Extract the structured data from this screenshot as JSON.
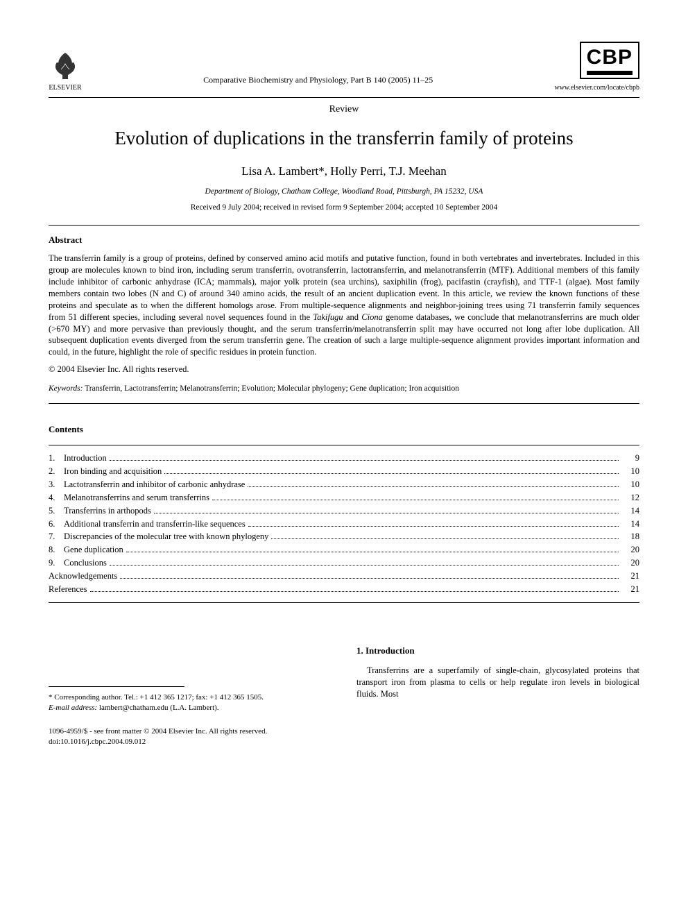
{
  "header": {
    "publisher_name": "ELSEVIER",
    "journal_reference": "Comparative Biochemistry and Physiology, Part B 140 (2005) 11–25",
    "cbp_label": "CBP",
    "journal_url": "www.elsevier.com/locate/cbpb"
  },
  "article": {
    "type": "Review",
    "title": "Evolution of duplications in the transferrin family of proteins",
    "authors": "Lisa A. Lambert*, Holly Perri, T.J. Meehan",
    "affiliation": "Department of Biology, Chatham College, Woodland Road, Pittsburgh, PA 15232, USA",
    "history": "Received 9 July 2004; received in revised form 9 September 2004; accepted 10 September 2004"
  },
  "abstract": {
    "heading": "Abstract",
    "body_pre": "The transferrin family is a group of proteins, defined by conserved amino acid motifs and putative function, found in both vertebrates and invertebrates. Included in this group are molecules known to bind iron, including serum transferrin, ovotransferrin, lactotransferrin, and melanotransferrin (MTF). Additional members of this family include inhibitor of carbonic anhydrase (ICA; mammals), major yolk protein (sea urchins), saxiphilin (frog), pacifastin (crayfish), and TTF-1 (algae). Most family members contain two lobes (N and C) of around 340 amino acids, the result of an ancient duplication event. In this article, we review the known functions of these proteins and speculate as to when the different homologs arose. From multiple-sequence alignments and neighbor-joining trees using 71 transferrin family sequences from 51 different species, including several novel sequences found in the ",
    "ital1": "Takifugu",
    "mid1": " and ",
    "ital2": "Ciona",
    "body_post": " genome databases, we conclude that melanotransferrins are much older (>670 MY) and more pervasive than previously thought, and the serum transferrin/melanotransferrin split may have occurred not long after lobe duplication. All subsequent duplication events diverged from the serum transferrin gene. The creation of such a large multiple-sequence alignment provides important information and could, in the future, highlight the role of specific residues in protein function.",
    "copyright": "© 2004 Elsevier Inc. All rights reserved."
  },
  "keywords": {
    "label": "Keywords:",
    "value": " Transferrin, Lactotransferrin; Melanotransferrin; Evolution; Molecular phylogeny; Gene duplication; Iron acquisition"
  },
  "contents": {
    "heading": "Contents",
    "items": [
      {
        "num": "1.",
        "title": "Introduction",
        "page": "9"
      },
      {
        "num": "2.",
        "title": "Iron binding and acquisition",
        "page": "10"
      },
      {
        "num": "3.",
        "title": "Lactotransferrin and inhibitor of carbonic anhydrase",
        "page": "10"
      },
      {
        "num": "4.",
        "title": "Melanotransferrins and serum transferrins",
        "page": "12"
      },
      {
        "num": "5.",
        "title": "Transferrins in arthopods",
        "page": "14"
      },
      {
        "num": "6.",
        "title": "Additional transferrin and transferrin-like sequences",
        "page": "14"
      },
      {
        "num": "7.",
        "title": "Discrepancies of the molecular tree with known phylogeny",
        "page": "18"
      },
      {
        "num": "8.",
        "title": "Gene duplication",
        "page": "20"
      },
      {
        "num": "9.",
        "title": "Conclusions",
        "page": "20"
      },
      {
        "num": "",
        "title": "Acknowledgements",
        "page": "21"
      },
      {
        "num": "",
        "title": "References",
        "page": "21"
      }
    ]
  },
  "footnote": {
    "corresponding": "* Corresponding author. Tel.: +1 412 365 1217; fax: +1 412 365 1505.",
    "email_label": "E-mail address:",
    "email_value": " lambert@chatham.edu (L.A. Lambert)."
  },
  "intro": {
    "heading": "1. Introduction",
    "body": "Transferrins are a superfamily of single-chain, glycosylated proteins that transport iron from plasma to cells or help regulate iron levels in biological fluids. Most"
  },
  "bottom": {
    "issn_line": "1096-4959/$ - see front matter © 2004 Elsevier Inc. All rights reserved.",
    "doi_line": "doi:10.1016/j.cbpc.2004.09.012"
  }
}
